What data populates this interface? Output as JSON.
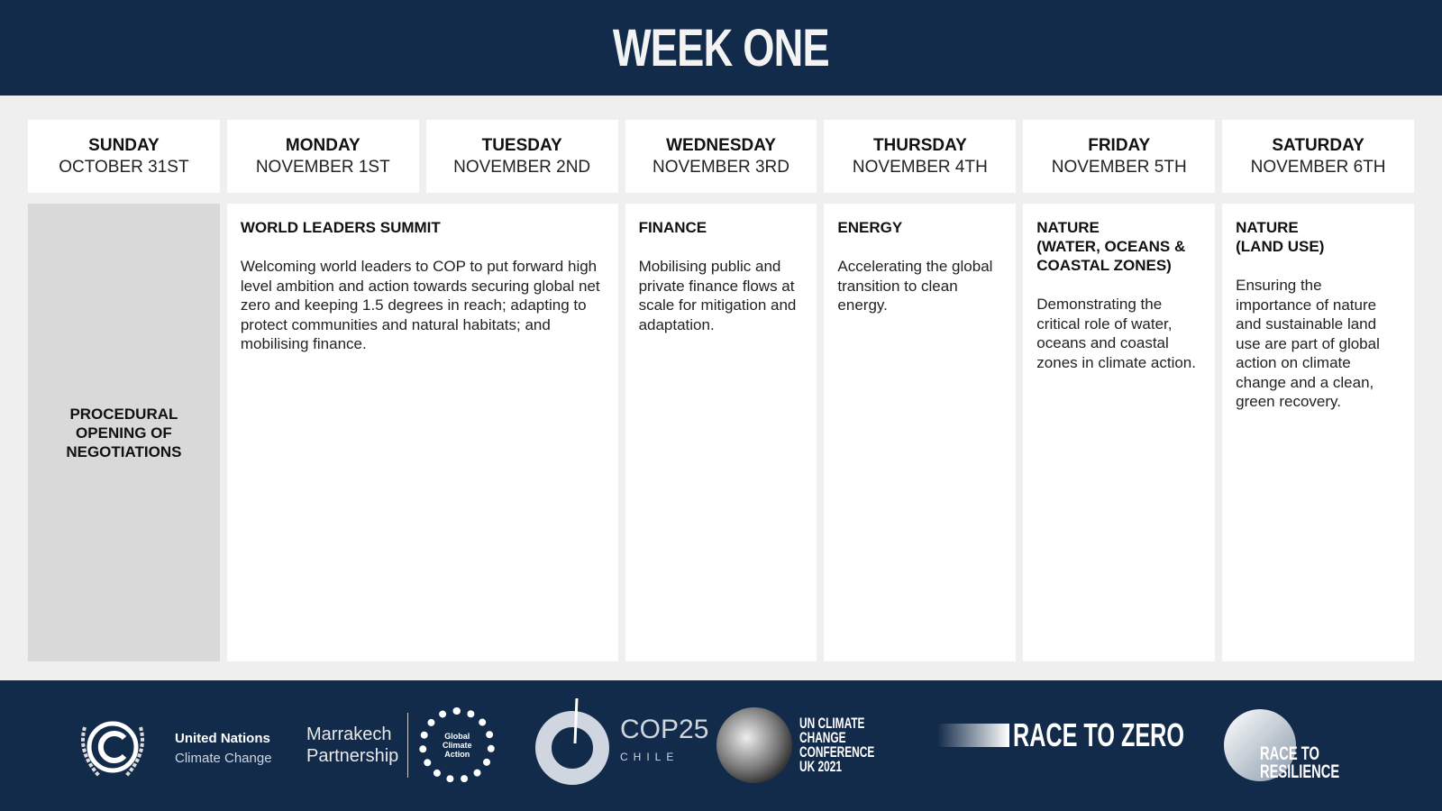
{
  "header": {
    "title": "WEEK ONE"
  },
  "days": [
    {
      "name": "SUNDAY",
      "date": "OCTOBER 31ST"
    },
    {
      "name": "MONDAY",
      "date": "NOVEMBER 1ST"
    },
    {
      "name": "TUESDAY",
      "date": "NOVEMBER 2ND"
    },
    {
      "name": "WEDNESDAY",
      "date": "NOVEMBER 3RD"
    },
    {
      "name": "THURSDAY",
      "date": "NOVEMBER 4TH"
    },
    {
      "name": "FRIDAY",
      "date": "NOVEMBER 5TH"
    },
    {
      "name": "SATURDAY",
      "date": "NOVEMBER 6TH"
    }
  ],
  "events": {
    "sunday": "PROCEDURAL\nOPENING OF\nNEGOTIATIONS",
    "world_leaders": {
      "title": "WORLD LEADERS SUMMIT",
      "text": "Welcoming world leaders to COP to put forward high level ambition and action towards securing global net zero and keeping 1.5 degrees in reach; adapting to protect communities and natural habitats; and mobilising finance."
    },
    "finance": {
      "title": "FINANCE",
      "text": "Mobilising public and private finance flows at scale for mitigation and adaptation."
    },
    "energy": {
      "title": "ENERGY",
      "text": "Accelerating the global transition to clean energy."
    },
    "nature_water": {
      "title": "NATURE\n(WATER, OCEANS &\nCOASTAL ZONES)",
      "text": "Demonstrating the critical role of water, oceans and coastal zones in climate action."
    },
    "nature_land": {
      "title": "NATURE\n(LAND USE)",
      "text": "Ensuring the importance of nature and sustainable land use are part of global action on climate change and a clean, green recovery."
    }
  },
  "footer": {
    "unfccc": {
      "line1": "United Nations",
      "line2": "Climate Change"
    },
    "marrakech": {
      "line1": "Marrakech",
      "line2": "Partnership",
      "badge": "Global Climate Action"
    },
    "cop25": {
      "main": "COP25",
      "sub": "CHILE"
    },
    "cop26": {
      "text": "UN CLIMATE CHANGE CONFERENCE UK 2021"
    },
    "race_to_zero": "RACE TO ZERO",
    "race_to_resilience": "RACE TO RESILIENCE"
  }
}
